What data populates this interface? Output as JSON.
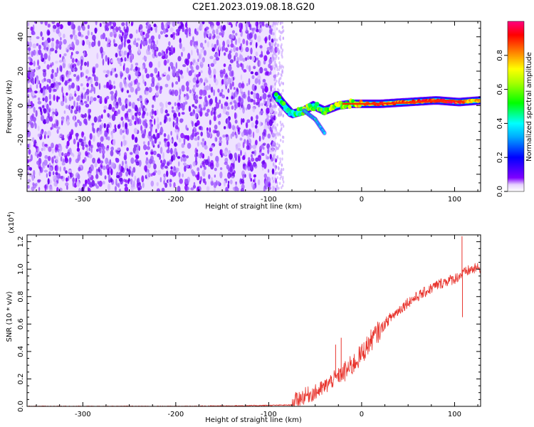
{
  "title": "C2E1.2023.019.08.18.G20",
  "colors": {
    "line": "#e8332c",
    "background": "#ffffff",
    "axis": "#000000"
  },
  "chart_data": [
    {
      "type": "heatmap",
      "xlabel": "Height of straight line (km)",
      "ylabel": "Frequency (Hz)",
      "xlim": [
        -360,
        128
      ],
      "ylim": [
        -50,
        49
      ],
      "x_ticks": [
        -300,
        -200,
        -100,
        0,
        100
      ],
      "x_tick_labels": [
        "-300",
        "-200",
        "-100",
        "0",
        "100"
      ],
      "y_ticks": [
        -40,
        -20,
        0,
        20,
        40
      ],
      "y_tick_labels": [
        "-40",
        "-20",
        "0",
        "20",
        "40"
      ],
      "noise_region": {
        "x_range": [
          -360,
          -92
        ],
        "amplitude": 0.0,
        "description_color": "#7f00ff"
      },
      "signal_track": {
        "points": [
          {
            "x": -92,
            "freq": 6,
            "amp": 0.45
          },
          {
            "x": -85,
            "freq": 1,
            "amp": 0.5
          },
          {
            "x": -75,
            "freq": -5,
            "amp": 0.45
          },
          {
            "x": -62,
            "freq": -3,
            "amp": 0.55
          },
          {
            "x": -52,
            "freq": 0,
            "amp": 0.6
          },
          {
            "x": -40,
            "freq": -3,
            "amp": 0.55
          },
          {
            "x": -25,
            "freq": 0,
            "amp": 0.65
          },
          {
            "x": -10,
            "freq": 1,
            "amp": 0.6
          },
          {
            "x": 0,
            "freq": 1,
            "amp": 0.75
          },
          {
            "x": 20,
            "freq": 1,
            "amp": 0.85
          },
          {
            "x": 50,
            "freq": 2,
            "amp": 0.8
          },
          {
            "x": 80,
            "freq": 3,
            "amp": 0.9
          },
          {
            "x": 105,
            "freq": 2,
            "amp": 0.9
          },
          {
            "x": 128,
            "freq": 3,
            "amp": 0.7
          }
        ],
        "branch": [
          {
            "x": -62,
            "freq": -3
          },
          {
            "x": -50,
            "freq": -8
          },
          {
            "x": -40,
            "freq": -16
          }
        ]
      },
      "colorbar": {
        "label": "Normalized spectral amplitude",
        "range": [
          0.0,
          1.0
        ],
        "ticks": [
          0.0,
          0.2,
          0.4,
          0.6,
          0.8
        ],
        "tick_labels": [
          "0.0",
          "0.2",
          "0.4",
          "0.6",
          "0.8"
        ],
        "colormap": "hsv rainbow (violet to red)"
      }
    },
    {
      "type": "line",
      "xlabel": "Height of straight line (km)",
      "ylabel": "SNR (10 * v/v)",
      "y_multiplier": "(x10",
      "y_multiplier_exp": "4",
      "y_multiplier_close": ")",
      "xlim": [
        -360,
        128
      ],
      "ylim": [
        0.0,
        1.25
      ],
      "x_ticks": [
        -300,
        -200,
        -100,
        0,
        100
      ],
      "x_tick_labels": [
        "-300",
        "-200",
        "-100",
        "0",
        "100"
      ],
      "y_ticks": [
        0.0,
        0.2,
        0.4,
        0.6,
        0.8,
        1.0,
        1.2
      ],
      "y_tick_labels": [
        "0.0",
        "0.2",
        "0.4",
        "0.6",
        "0.8",
        "1.0",
        "1.2"
      ],
      "series": [
        {
          "color": "#e8332c",
          "x": [
            -360,
            -300,
            -200,
            -120,
            -75,
            -70,
            -60,
            -50,
            -40,
            -30,
            -20,
            -10,
            0,
            10,
            20,
            30,
            40,
            50,
            60,
            70,
            80,
            90,
            100,
            105,
            110,
            115,
            120,
            128
          ],
          "y": [
            0.0,
            0.0,
            0.0,
            0.005,
            0.01,
            0.05,
            0.08,
            0.1,
            0.14,
            0.2,
            0.24,
            0.3,
            0.38,
            0.48,
            0.56,
            0.64,
            0.7,
            0.76,
            0.8,
            0.84,
            0.88,
            0.91,
            0.93,
            0.95,
            0.97,
            0.99,
            1.0,
            1.01
          ]
        }
      ],
      "spikes": [
        {
          "x": -28,
          "y": 0.45
        },
        {
          "x": -22,
          "y": 0.5
        },
        {
          "x": 108,
          "y": 1.24
        },
        {
          "x": 108.5,
          "y": 0.65
        }
      ]
    }
  ]
}
